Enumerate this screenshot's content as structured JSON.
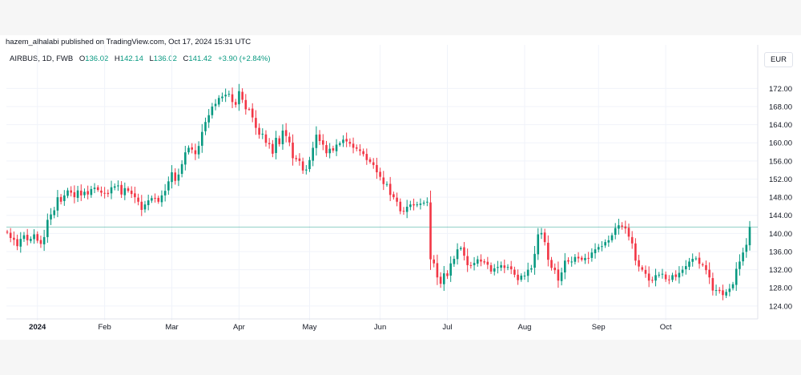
{
  "publisher_line": "hazem_alhalabi published on TradingView.com, Oct 17, 2024 15:31 UTC",
  "currency": "EUR",
  "legend": {
    "symbol": "AIRBUS, 1D, FWB",
    "open_label": "O",
    "open": "136.02",
    "high_label": "H",
    "high": "142.14",
    "low_label": "L",
    "low": "136.02",
    "close_label": "C",
    "close": "141.42",
    "change": "+3.90 (+2.84%)"
  },
  "colors": {
    "up": "#089981",
    "down": "#f23645",
    "grid": "#f0f3fa",
    "last_price_line": "#089981"
  },
  "chart_data": {
    "type": "candlestick",
    "y_ticks": [
      124,
      128,
      132,
      136,
      140,
      144,
      148,
      152,
      156,
      160,
      164,
      168,
      172
    ],
    "y_tick_labels": [
      "124.00",
      "128.00",
      "132.00",
      "136.00",
      "140.00",
      "144.00",
      "148.00",
      "152.00",
      "156.00",
      "160.00",
      "164.00",
      "168.00",
      "172.00"
    ],
    "ylim": [
      121.5,
      175.6
    ],
    "x_ticks": [
      {
        "label": "2024",
        "index": 9,
        "bold": true
      },
      {
        "label": "Feb",
        "index": 29
      },
      {
        "label": "Mar",
        "index": 49
      },
      {
        "label": "Apr",
        "index": 69
      },
      {
        "label": "May",
        "index": 90
      },
      {
        "label": "Jun",
        "index": 111
      },
      {
        "label": "Jul",
        "index": 131
      },
      {
        "label": "Aug",
        "index": 154
      },
      {
        "label": "Sep",
        "index": 176
      },
      {
        "label": "Oct",
        "index": 196
      }
    ],
    "last_price": 141.42,
    "closes": [
      140.2,
      139.0,
      138.6,
      137.2,
      138.8,
      139.6,
      138.5,
      138.8,
      139.8,
      138.4,
      137.7,
      139.2,
      143.0,
      144.2,
      145.1,
      148.0,
      147.0,
      148.4,
      149.5,
      149.0,
      148.0,
      149.5,
      148.4,
      149.2,
      148.6,
      149.8,
      150.1,
      149.6,
      149.0,
      148.9,
      148.7,
      150.2,
      150.4,
      150.6,
      148.6,
      150.0,
      149.4,
      148.7,
      148.0,
      147.0,
      145.2,
      146.4,
      147.3,
      147.8,
      147.7,
      147.0,
      148.4,
      149.4,
      151.5,
      153.5,
      151.6,
      153.0,
      155.3,
      157.9,
      158.9,
      158.5,
      157.5,
      159.3,
      162.4,
      164.6,
      166.1,
      168.0,
      168.6,
      169.9,
      170.2,
      170.6,
      170.8,
      169.0,
      168.4,
      171.4,
      169.5,
      167.4,
      167.4,
      165.6,
      163.3,
      161.8,
      162.0,
      160.0,
      159.7,
      157.6,
      161.1,
      159.7,
      162.7,
      161.5,
      160.1,
      156.6,
      156.4,
      156.0,
      153.9,
      154.1,
      156.2,
      158.9,
      161.8,
      160.4,
      159.6,
      157.7,
      158.7,
      158.3,
      159.6,
      159.9,
      160.7,
      160.3,
      159.8,
      158.9,
      158.7,
      158.2,
      157.5,
      156.2,
      155.8,
      155.1,
      153.5,
      152.5,
      150.9,
      150.9,
      148.5,
      148.0,
      147.0,
      144.9,
      144.9,
      145.9,
      146.4,
      146.2,
      146.4,
      146.6,
      146.8,
      147.0,
      134.3,
      133.4,
      130.3,
      128.9,
      131.2,
      130.6,
      133.4,
      134.4,
      136.5,
      136.8,
      135.1,
      133.0,
      132.9,
      133.5,
      134.3,
      133.8,
      133.6,
      133.1,
      131.6,
      132.3,
      132.6,
      133.0,
      132.4,
      132.6,
      132.1,
      130.9,
      129.7,
      130.7,
      130.7,
      132.0,
      132.3,
      135.5,
      139.8,
      140.1,
      138.1,
      134.2,
      132.4,
      131.9,
      129.6,
      131.4,
      134.0,
      133.8,
      133.8,
      134.8,
      134.5,
      134.2,
      134.6,
      134.5,
      135.8,
      136.5,
      137.0,
      137.2,
      138.1,
      138.5,
      139.6,
      141.2,
      141.8,
      141.5,
      141.1,
      139.3,
      137.8,
      134.0,
      132.7,
      132.0,
      131.1,
      129.6,
      129.7,
      130.8,
      130.9,
      131.1,
      129.9,
      129.7,
      130.8,
      130.4,
      131.3,
      132.0,
      132.8,
      133.8,
      134.4,
      134.5,
      133.3,
      133.0,
      131.9,
      130.3,
      127.4,
      127.5,
      127.3,
      126.4,
      127.1,
      127.8,
      128.8,
      132.2,
      133.8,
      135.8,
      137.5,
      141.42
    ],
    "first_open": 140.4
  }
}
